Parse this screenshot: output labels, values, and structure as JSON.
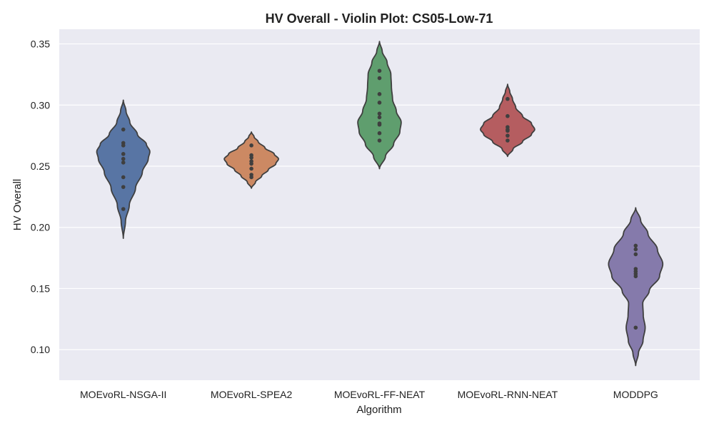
{
  "chart_data": {
    "type": "violin",
    "title": "HV Overall - Violin Plot: CS05-Low-71",
    "xlabel": "Algorithm",
    "ylabel": "HV Overall",
    "ylim": [
      0.075,
      0.362
    ],
    "yticks": [
      "0.10",
      "0.15",
      "0.20",
      "0.25",
      "0.30",
      "0.35"
    ],
    "grid": true,
    "background": "#eaeaf2",
    "categories": [
      "MOEvoRL-NSGA-II",
      "MOEvoRL-SPEA2",
      "MOEvoRL-FF-NEAT",
      "MOEvoRL-RNN-NEAT",
      "MODDPG"
    ],
    "series": [
      {
        "color": "#5875a4",
        "values": [
          0.28,
          0.269,
          0.267,
          0.26,
          0.256,
          0.253,
          0.241,
          0.233,
          0.215
        ],
        "range": [
          0.191,
          0.304
        ],
        "density": [
          [
            0.191,
            0.0
          ],
          [
            0.205,
            0.08
          ],
          [
            0.218,
            0.22
          ],
          [
            0.232,
            0.45
          ],
          [
            0.245,
            0.7
          ],
          [
            0.256,
            0.92
          ],
          [
            0.262,
            0.98
          ],
          [
            0.268,
            0.85
          ],
          [
            0.276,
            0.52
          ],
          [
            0.286,
            0.24
          ],
          [
            0.295,
            0.1
          ],
          [
            0.304,
            0.0
          ]
        ]
      },
      {
        "color": "#cc8963",
        "values": [
          0.267,
          0.259,
          0.257,
          0.254,
          0.252,
          0.248,
          0.243,
          0.241
        ],
        "range": [
          0.232,
          0.278
        ],
        "density": [
          [
            0.232,
            0.0
          ],
          [
            0.237,
            0.15
          ],
          [
            0.242,
            0.38
          ],
          [
            0.247,
            0.62
          ],
          [
            0.252,
            0.9
          ],
          [
            0.256,
            1.0
          ],
          [
            0.26,
            0.84
          ],
          [
            0.265,
            0.5
          ],
          [
            0.27,
            0.25
          ],
          [
            0.274,
            0.1
          ],
          [
            0.278,
            0.0
          ]
        ]
      },
      {
        "color": "#5f9e6e",
        "values": [
          0.328,
          0.322,
          0.309,
          0.302,
          0.293,
          0.29,
          0.285,
          0.284,
          0.277,
          0.271
        ],
        "range": [
          0.248,
          0.352
        ],
        "density": [
          [
            0.248,
            0.0
          ],
          [
            0.258,
            0.22
          ],
          [
            0.268,
            0.52
          ],
          [
            0.278,
            0.75
          ],
          [
            0.286,
            0.8
          ],
          [
            0.295,
            0.62
          ],
          [
            0.305,
            0.48
          ],
          [
            0.315,
            0.44
          ],
          [
            0.325,
            0.42
          ],
          [
            0.335,
            0.28
          ],
          [
            0.344,
            0.1
          ],
          [
            0.352,
            0.0
          ]
        ]
      },
      {
        "color": "#b55d60",
        "values": [
          0.305,
          0.291,
          0.282,
          0.28,
          0.279,
          0.275,
          0.271
        ],
        "range": [
          0.258,
          0.317
        ],
        "density": [
          [
            0.258,
            0.0
          ],
          [
            0.264,
            0.2
          ],
          [
            0.27,
            0.55
          ],
          [
            0.276,
            0.88
          ],
          [
            0.28,
            1.0
          ],
          [
            0.285,
            0.88
          ],
          [
            0.291,
            0.55
          ],
          [
            0.298,
            0.3
          ],
          [
            0.305,
            0.18
          ],
          [
            0.311,
            0.08
          ],
          [
            0.317,
            0.0
          ]
        ]
      },
      {
        "color": "#857aab",
        "values": [
          0.185,
          0.182,
          0.178,
          0.166,
          0.164,
          0.162,
          0.16,
          0.118
        ],
        "range": [
          0.087,
          0.216
        ],
        "density": [
          [
            0.087,
            0.0
          ],
          [
            0.097,
            0.1
          ],
          [
            0.107,
            0.27
          ],
          [
            0.118,
            0.35
          ],
          [
            0.128,
            0.28
          ],
          [
            0.138,
            0.26
          ],
          [
            0.148,
            0.5
          ],
          [
            0.16,
            0.88
          ],
          [
            0.17,
            1.0
          ],
          [
            0.182,
            0.8
          ],
          [
            0.195,
            0.45
          ],
          [
            0.206,
            0.18
          ],
          [
            0.216,
            0.0
          ]
        ]
      }
    ]
  }
}
